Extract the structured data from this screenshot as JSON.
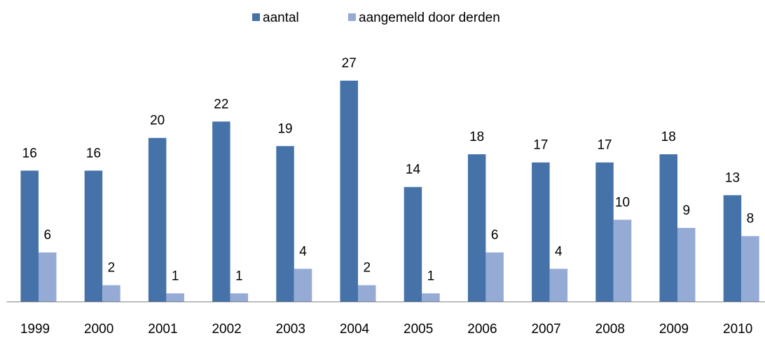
{
  "chart_data": {
    "type": "bar",
    "categories": [
      "1999",
      "2000",
      "2001",
      "2002",
      "2003",
      "2004",
      "2005",
      "2006",
      "2007",
      "2008",
      "2009",
      "2010"
    ],
    "series": [
      {
        "name": "aantal",
        "color": "#4672aa",
        "values": [
          16,
          16,
          20,
          22,
          19,
          27,
          14,
          18,
          17,
          17,
          18,
          13
        ]
      },
      {
        "name": "aangemeld door derden",
        "color": "#95abd6",
        "values": [
          6,
          2,
          1,
          1,
          4,
          2,
          1,
          6,
          4,
          10,
          9,
          8
        ]
      }
    ],
    "ylim": [
      0,
      30
    ],
    "legend": "top"
  }
}
